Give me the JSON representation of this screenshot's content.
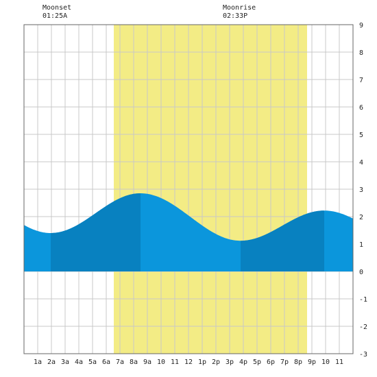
{
  "moon": {
    "set": {
      "label": "Moonset",
      "time": "01:25A"
    },
    "rise": {
      "label": "Moonrise",
      "time": "02:33P"
    }
  },
  "colors": {
    "daylight": "#f3ec85",
    "tide_light": "#0b96dc",
    "tide_dark": "#0881c0",
    "grid": "#c8c8c8",
    "frame": "#666666",
    "background": "#ffffff"
  },
  "chart_data": {
    "type": "area",
    "title": "",
    "xlabel": "",
    "ylabel": "",
    "xlim": [
      0,
      24
    ],
    "ylim": [
      -3,
      9
    ],
    "y_ticks": [
      -3,
      -2,
      -1,
      0,
      1,
      2,
      3,
      4,
      5,
      6,
      7,
      8,
      9
    ],
    "x_ticks": [
      {
        "x": 1,
        "label": "1a"
      },
      {
        "x": 2,
        "label": "2a"
      },
      {
        "x": 3,
        "label": "3a"
      },
      {
        "x": 4,
        "label": "4a"
      },
      {
        "x": 5,
        "label": "5a"
      },
      {
        "x": 6,
        "label": "6a"
      },
      {
        "x": 7,
        "label": "7a"
      },
      {
        "x": 8,
        "label": "8a"
      },
      {
        "x": 9,
        "label": "9a"
      },
      {
        "x": 10,
        "label": "10"
      },
      {
        "x": 11,
        "label": "11"
      },
      {
        "x": 12,
        "label": "12"
      },
      {
        "x": 13,
        "label": "1p"
      },
      {
        "x": 14,
        "label": "2p"
      },
      {
        "x": 15,
        "label": "3p"
      },
      {
        "x": 16,
        "label": "4p"
      },
      {
        "x": 17,
        "label": "5p"
      },
      {
        "x": 18,
        "label": "6p"
      },
      {
        "x": 19,
        "label": "7p"
      },
      {
        "x": 20,
        "label": "8p"
      },
      {
        "x": 21,
        "label": "9p"
      },
      {
        "x": 22,
        "label": "10"
      },
      {
        "x": 23,
        "label": "11"
      }
    ],
    "daylight": {
      "start": 6.55,
      "end": 20.65
    },
    "tide_extremes": [
      {
        "time": 1.95,
        "height": 1.4,
        "kind": "low"
      },
      {
        "time": 8.5,
        "height": 2.85,
        "kind": "high"
      },
      {
        "time": 15.8,
        "height": 1.12,
        "kind": "low"
      },
      {
        "time": 21.9,
        "height": 2.22,
        "kind": "high"
      }
    ],
    "tide_start": {
      "time": 0,
      "height": 1.62
    },
    "tide_end": {
      "time": 24,
      "height": 2.0
    },
    "shade_bands": [
      {
        "start": 1.95,
        "end": 8.5
      },
      {
        "start": 15.8,
        "end": 21.9
      }
    ],
    "grid": true
  }
}
